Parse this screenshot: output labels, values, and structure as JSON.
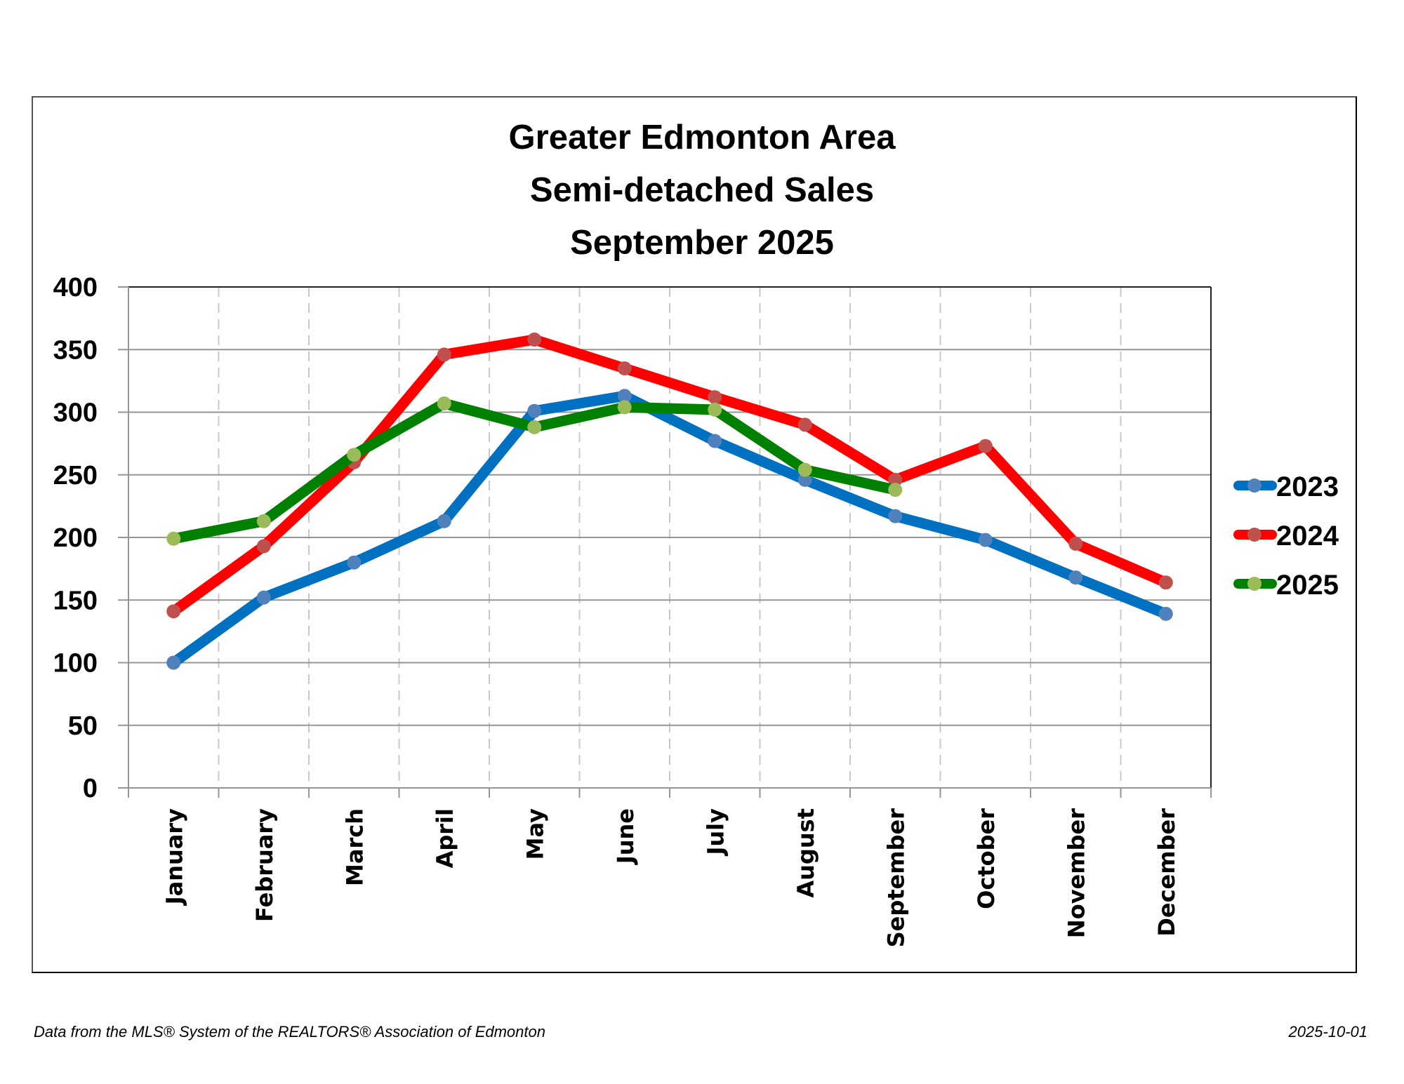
{
  "chart_data": {
    "type": "line",
    "title": [
      "Greater Edmonton Area",
      "Semi-detached Sales",
      "September 2025"
    ],
    "xlabel": "",
    "ylabel": "",
    "categories": [
      "January",
      "February",
      "March",
      "April",
      "May",
      "June",
      "July",
      "August",
      "September",
      "October",
      "November",
      "December"
    ],
    "ylim": [
      0,
      400
    ],
    "yticks": [
      0,
      50,
      100,
      150,
      200,
      250,
      300,
      350,
      400
    ],
    "grid": {
      "horizontal": "solid",
      "vertical": "dashed"
    },
    "legend_position": "right",
    "series": [
      {
        "name": "2023",
        "line_color": "#0070C0",
        "marker_color": "#4F81BD",
        "values": [
          100,
          152,
          180,
          213,
          301,
          313,
          277,
          246,
          217,
          198,
          168,
          139
        ]
      },
      {
        "name": "2024",
        "line_color": "#FF0000",
        "marker_color": "#C0504D",
        "values": [
          141,
          193,
          260,
          346,
          358,
          335,
          312,
          290,
          246,
          273,
          195,
          164
        ]
      },
      {
        "name": "2025",
        "line_color": "#008000",
        "marker_color": "#9BBB59",
        "values": [
          199,
          213,
          266,
          307,
          288,
          304,
          302,
          254,
          238,
          null,
          null,
          null
        ]
      }
    ]
  },
  "footer": {
    "source": "Data from the MLS® System of the REALTORS® Association of Edmonton",
    "date": "2025-10-01"
  }
}
